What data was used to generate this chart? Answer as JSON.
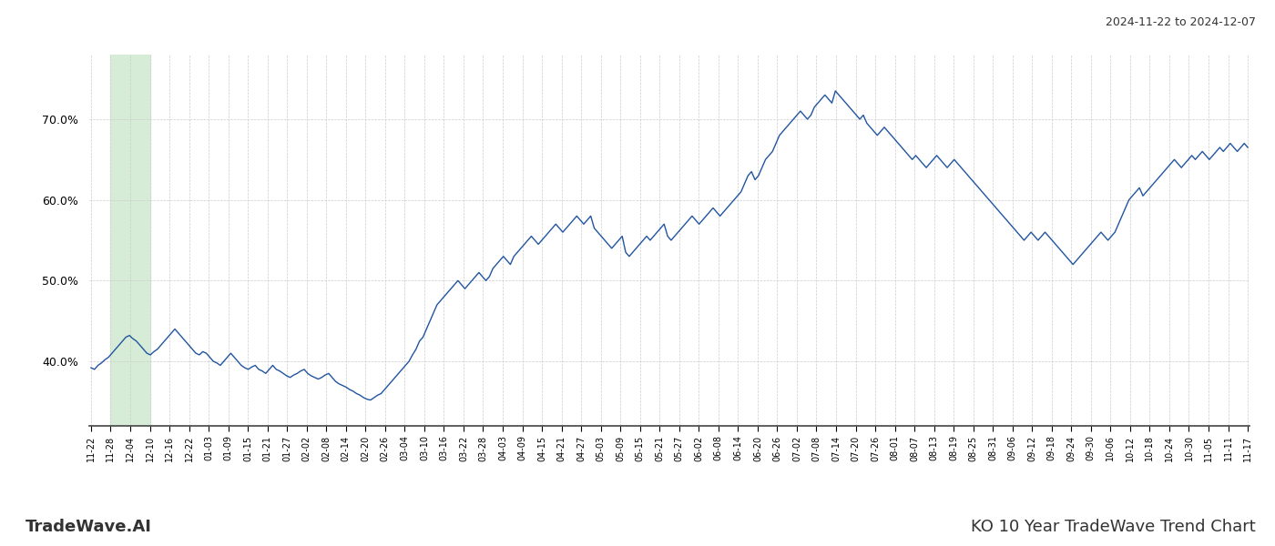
{
  "title_top_right": "2024-11-22 to 2024-12-07",
  "title_bottom_left": "TradeWave.AI",
  "title_bottom_right": "KO 10 Year TradeWave Trend Chart",
  "line_color": "#2255a0",
  "background_color": "#ffffff",
  "grid_color": "#cccccc",
  "highlight_region_color": "#d6ecd6",
  "ylim": [
    32,
    78
  ],
  "yticks": [
    40.0,
    50.0,
    60.0,
    70.0
  ],
  "x_labels": [
    "11-22",
    "11-28",
    "12-04",
    "12-10",
    "12-16",
    "12-22",
    "01-03",
    "01-09",
    "01-15",
    "01-21",
    "01-27",
    "02-02",
    "02-08",
    "02-14",
    "02-20",
    "02-26",
    "03-04",
    "03-10",
    "03-16",
    "03-22",
    "03-28",
    "04-03",
    "04-09",
    "04-15",
    "04-21",
    "04-27",
    "05-03",
    "05-09",
    "05-15",
    "05-21",
    "05-27",
    "06-02",
    "06-08",
    "06-14",
    "06-20",
    "06-26",
    "07-02",
    "07-08",
    "07-14",
    "07-20",
    "07-26",
    "08-01",
    "08-07",
    "08-13",
    "08-19",
    "08-25",
    "08-31",
    "09-06",
    "09-12",
    "09-18",
    "09-24",
    "09-30",
    "10-06",
    "10-12",
    "10-18",
    "10-24",
    "10-30",
    "11-05",
    "11-11",
    "11-17"
  ],
  "highlight_label_start": "11-28",
  "highlight_label_end": "12-10",
  "y_values": [
    39.2,
    39.0,
    39.5,
    39.8,
    40.2,
    40.5,
    41.0,
    41.5,
    42.0,
    42.5,
    43.0,
    43.2,
    42.8,
    42.5,
    42.0,
    41.5,
    41.0,
    40.8,
    41.2,
    41.5,
    42.0,
    42.5,
    43.0,
    43.5,
    44.0,
    43.5,
    43.0,
    42.5,
    42.0,
    41.5,
    41.0,
    40.8,
    41.2,
    41.0,
    40.5,
    40.0,
    39.8,
    39.5,
    40.0,
    40.5,
    41.0,
    40.5,
    40.0,
    39.5,
    39.2,
    39.0,
    39.3,
    39.5,
    39.0,
    38.8,
    38.5,
    39.0,
    39.5,
    39.0,
    38.8,
    38.5,
    38.2,
    38.0,
    38.3,
    38.5,
    38.8,
    39.0,
    38.5,
    38.2,
    38.0,
    37.8,
    38.0,
    38.3,
    38.5,
    38.0,
    37.5,
    37.2,
    37.0,
    36.8,
    36.5,
    36.3,
    36.0,
    35.8,
    35.5,
    35.3,
    35.2,
    35.5,
    35.8,
    36.0,
    36.5,
    37.0,
    37.5,
    38.0,
    38.5,
    39.0,
    39.5,
    40.0,
    40.8,
    41.5,
    42.5,
    43.0,
    44.0,
    45.0,
    46.0,
    47.0,
    47.5,
    48.0,
    48.5,
    49.0,
    49.5,
    50.0,
    49.5,
    49.0,
    49.5,
    50.0,
    50.5,
    51.0,
    50.5,
    50.0,
    50.5,
    51.5,
    52.0,
    52.5,
    53.0,
    52.5,
    52.0,
    53.0,
    53.5,
    54.0,
    54.5,
    55.0,
    55.5,
    55.0,
    54.5,
    55.0,
    55.5,
    56.0,
    56.5,
    57.0,
    56.5,
    56.0,
    56.5,
    57.0,
    57.5,
    58.0,
    57.5,
    57.0,
    57.5,
    58.0,
    56.5,
    56.0,
    55.5,
    55.0,
    54.5,
    54.0,
    54.5,
    55.0,
    55.5,
    53.5,
    53.0,
    53.5,
    54.0,
    54.5,
    55.0,
    55.5,
    55.0,
    55.5,
    56.0,
    56.5,
    57.0,
    55.5,
    55.0,
    55.5,
    56.0,
    56.5,
    57.0,
    57.5,
    58.0,
    57.5,
    57.0,
    57.5,
    58.0,
    58.5,
    59.0,
    58.5,
    58.0,
    58.5,
    59.0,
    59.5,
    60.0,
    60.5,
    61.0,
    62.0,
    63.0,
    63.5,
    62.5,
    63.0,
    64.0,
    65.0,
    65.5,
    66.0,
    67.0,
    68.0,
    68.5,
    69.0,
    69.5,
    70.0,
    70.5,
    71.0,
    70.5,
    70.0,
    70.5,
    71.5,
    72.0,
    72.5,
    73.0,
    72.5,
    72.0,
    73.5,
    73.0,
    72.5,
    72.0,
    71.5,
    71.0,
    70.5,
    70.0,
    70.5,
    69.5,
    69.0,
    68.5,
    68.0,
    68.5,
    69.0,
    68.5,
    68.0,
    67.5,
    67.0,
    66.5,
    66.0,
    65.5,
    65.0,
    65.5,
    65.0,
    64.5,
    64.0,
    64.5,
    65.0,
    65.5,
    65.0,
    64.5,
    64.0,
    64.5,
    65.0,
    64.5,
    64.0,
    63.5,
    63.0,
    62.5,
    62.0,
    61.5,
    61.0,
    60.5,
    60.0,
    59.5,
    59.0,
    58.5,
    58.0,
    57.5,
    57.0,
    56.5,
    56.0,
    55.5,
    55.0,
    55.5,
    56.0,
    55.5,
    55.0,
    55.5,
    56.0,
    55.5,
    55.0,
    54.5,
    54.0,
    53.5,
    53.0,
    52.5,
    52.0,
    52.5,
    53.0,
    53.5,
    54.0,
    54.5,
    55.0,
    55.5,
    56.0,
    55.5,
    55.0,
    55.5,
    56.0,
    57.0,
    58.0,
    59.0,
    60.0,
    60.5,
    61.0,
    61.5,
    60.5,
    61.0,
    61.5,
    62.0,
    62.5,
    63.0,
    63.5,
    64.0,
    64.5,
    65.0,
    64.5,
    64.0,
    64.5,
    65.0,
    65.5,
    65.0,
    65.5,
    66.0,
    65.5,
    65.0,
    65.5,
    66.0,
    66.5,
    66.0,
    66.5,
    67.0,
    66.5,
    66.0,
    66.5,
    67.0,
    66.5
  ]
}
